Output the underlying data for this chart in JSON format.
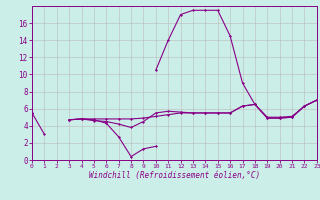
{
  "title": "",
  "xlabel": "Windchill (Refroidissement éolien,°C)",
  "background_color": "#cceee8",
  "line_color": "#880088",
  "grid_color": "#bbbbbb",
  "hours": [
    0,
    1,
    2,
    3,
    4,
    5,
    6,
    7,
    8,
    9,
    10,
    11,
    12,
    13,
    14,
    15,
    16,
    17,
    18,
    19,
    20,
    21,
    22,
    23
  ],
  "line1": [
    5.5,
    3.0,
    null,
    4.7,
    4.8,
    4.7,
    4.3,
    2.7,
    0.4,
    1.3,
    1.6,
    null,
    null,
    null,
    null,
    null,
    null,
    null,
    null,
    null,
    null,
    null,
    null,
    null
  ],
  "line2": [
    5.5,
    null,
    null,
    4.7,
    4.8,
    4.6,
    4.5,
    4.2,
    3.8,
    4.5,
    5.5,
    5.7,
    5.6,
    5.5,
    5.5,
    5.5,
    5.5,
    6.3,
    6.5,
    4.9,
    4.9,
    5.0,
    6.3,
    7.0
  ],
  "line3": [
    5.5,
    null,
    null,
    4.7,
    4.8,
    4.8,
    4.8,
    4.8,
    4.8,
    4.9,
    5.1,
    5.3,
    5.5,
    5.5,
    5.5,
    5.5,
    5.5,
    6.3,
    6.5,
    5.0,
    5.0,
    5.1,
    6.3,
    7.0
  ],
  "line4": [
    null,
    null,
    null,
    null,
    null,
    null,
    null,
    null,
    null,
    null,
    10.5,
    14.0,
    17.0,
    17.5,
    17.5,
    17.5,
    14.5,
    9.0,
    6.5,
    4.9,
    4.9,
    5.0,
    6.3,
    7.0
  ],
  "ylim": [
    0,
    18
  ],
  "xlim": [
    0,
    23
  ],
  "yticks": [
    0,
    2,
    4,
    6,
    8,
    10,
    12,
    14,
    16
  ],
  "xticks": [
    0,
    1,
    2,
    3,
    4,
    5,
    6,
    7,
    8,
    9,
    10,
    11,
    12,
    13,
    14,
    15,
    16,
    17,
    18,
    19,
    20,
    21,
    22,
    23
  ]
}
